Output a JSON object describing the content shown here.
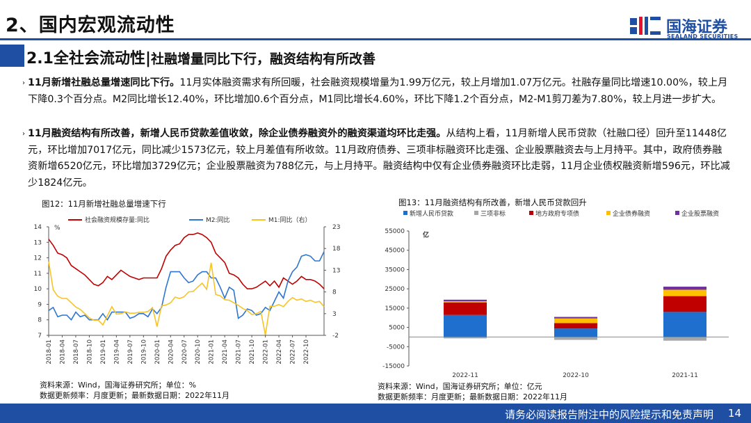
{
  "header": {
    "title": "2、国内宏观流动性",
    "logo_cn": "国海证券",
    "logo_en": "SEALAND SECURITIES"
  },
  "section": {
    "title_main": "2.1全社会流动性",
    "title_sub": "社融增量同比下行，融资结构有所改善"
  },
  "bullets": [
    {
      "bold": "11月新增社融总量增速同比下行。",
      "text": "11月实体融资需求有所回暖，社会融资规模增量为1.99万亿元，较上月增加1.07万亿元。社融存量同比增速10.00%，较上月下降0.3个百分点。M2同比增长12.40%，环比增加0.6个百分点，M1同比增长4.60%，环比下降1.2个百分点，M2-M1剪刀差为7.80%，较上月进一步扩大。"
    },
    {
      "bold": "11月融资结构有所改善，新增人民币贷款差值收敛，除企业债券融资外的融资渠道均环比走强。",
      "text": "从结构上看，11月新增人民币贷款（社融口径）回升至11448亿元，环比增加7017亿元，同比减少1573亿元，较上月差值有所收敛。11月政府债券、三项非标融资环比走强、企业股票融资去与上月持平。其中，政府债券融资新增6520亿元，环比增加3729亿元；企业股票融资为788亿元，与上月持平。融资结构中仅有企业债券融资环比走弱，11月企业债权融资新增596元，环比减少1824亿元。"
    }
  ],
  "captions": {
    "fig12": "图12：11月新增社融总量增速下行",
    "fig13": "图13：11月融资结构有所改善，新增人民币贷款回升"
  },
  "sources": {
    "fig12_line1": "资料来源：Wind，国海证券研究所；单位：%",
    "fig12_line2": "数据更新频率：月度更新；最新数据日期：2022年11月",
    "fig13_line1": "资料来源：Wind，国海证券研究所；单位：亿元",
    "fig13_line2": "数据更新频率：月度更新；最新数据日期：2022年11月"
  },
  "footer": {
    "disclaimer": "请务必阅读报告附注中的风险提示和免责声明",
    "page": "14"
  },
  "colors": {
    "brand": "#1f4fa3",
    "shehui": "#c00000",
    "m2": "#2e75d0",
    "m1": "#f7c325",
    "loan": "#1f6fce",
    "nonstd": "#a6a6a6",
    "gov": "#c00000",
    "bond": "#ffc000",
    "stock": "#7030a0"
  },
  "chart_data": [
    {
      "type": "line",
      "left_axis_unit": "%",
      "right_axis_label": "",
      "ylim_left": [
        7,
        14
      ],
      "ylim_right": [
        -2,
        23
      ],
      "yticks_left": [
        7,
        8,
        9,
        10,
        11,
        12,
        13,
        14
      ],
      "yticks_right": [
        -2,
        3,
        8,
        13,
        18,
        23
      ],
      "xtick_labels": [
        "2018-01",
        "2018-04",
        "2018-07",
        "2018-10",
        "2019-01",
        "2019-04",
        "2019-07",
        "2019-10",
        "2020-01",
        "2020-04",
        "2020-07",
        "2020-10",
        "2021-01",
        "2021-04",
        "2021-07",
        "2021-10",
        "2022-01",
        "2022-04",
        "2022-07",
        "2022-10"
      ],
      "series": [
        {
          "name": "社会融资规模存量:同比",
          "axis": "left",
          "values": [
            13.2,
            12.8,
            12.3,
            12.2,
            12.0,
            11.5,
            11.3,
            11.1,
            10.9,
            10.6,
            10.3,
            10.2,
            10.4,
            10.8,
            10.6,
            10.9,
            11.2,
            11.0,
            10.8,
            10.7,
            10.6,
            10.7,
            10.7,
            10.7,
            10.7,
            11.3,
            12.1,
            12.5,
            12.8,
            12.9,
            13.3,
            13.5,
            13.5,
            13.6,
            13.5,
            13.3,
            13.0,
            12.3,
            12.0,
            11.7,
            11.0,
            10.9,
            10.7,
            10.3,
            10.0,
            10.0,
            10.1,
            10.3,
            10.5,
            10.2,
            10.5,
            10.1,
            10.7,
            10.5,
            10.3,
            10.5,
            10.8,
            10.6,
            10.6,
            10.5,
            10.3,
            10.0
          ]
        },
        {
          "name": "M2:同比",
          "axis": "left",
          "values": [
            8.6,
            8.8,
            8.2,
            8.3,
            8.3,
            8.0,
            8.5,
            8.2,
            8.3,
            8.0,
            8.0,
            8.0,
            8.4,
            8.0,
            8.5,
            8.5,
            8.5,
            8.5,
            8.1,
            8.2,
            8.4,
            8.4,
            8.2,
            8.7,
            8.4,
            8.8,
            10.1,
            11.1,
            11.1,
            11.1,
            10.7,
            10.4,
            10.5,
            10.9,
            11.1,
            11.1,
            10.7,
            10.7,
            10.1,
            9.4,
            10.1,
            9.9,
            8.1,
            8.3,
            8.7,
            8.6,
            8.3,
            8.4,
            8.8,
            8.6,
            9.2,
            9.8,
            9.4,
            10.5,
            11.1,
            11.4,
            12.1,
            12.2,
            12.1,
            11.8,
            11.8,
            12.4
          ]
        },
        {
          "name": "M1:同比（右）",
          "axis": "right",
          "values": [
            15.0,
            8.5,
            7.0,
            6.5,
            6.5,
            5.5,
            4.5,
            4.0,
            3.0,
            2.0,
            1.5,
            1.5,
            0.4,
            2.5,
            4.6,
            2.9,
            3.0,
            3.4,
            3.1,
            3.1,
            3.3,
            3.3,
            3.5,
            4.4,
            0.0,
            4.8,
            5.0,
            5.5,
            6.8,
            6.5,
            6.9,
            8.0,
            8.1,
            9.1,
            10.0,
            8.6,
            14.7,
            7.4,
            7.1,
            6.2,
            6.1,
            5.5,
            4.9,
            4.2,
            3.7,
            2.8,
            3.0,
            3.5,
            -1.9,
            4.7,
            4.7,
            5.1,
            4.6,
            5.8,
            6.7,
            6.1,
            6.4,
            5.8,
            6.1,
            5.6,
            5.8,
            4.6
          ]
        }
      ]
    },
    {
      "type": "bar",
      "stacked": true,
      "unit_label": "亿",
      "ylim": [
        -15000,
        55000
      ],
      "yticks": [
        -15000,
        -5000,
        5000,
        15000,
        25000,
        35000,
        45000,
        55000
      ],
      "categories": [
        "2022-11",
        "2022-10",
        "2021-11"
      ],
      "series": [
        {
          "name": "新增人民币贷款",
          "values": [
            11448,
            4431,
            13021
          ]
        },
        {
          "name": "三项非标",
          "values": [
            -700,
            -1480,
            -1900
          ]
        },
        {
          "name": "地方政府专项债",
          "values": [
            6520,
            2791,
            8200
          ]
        },
        {
          "name": "企业债券融资",
          "values": [
            596,
            2420,
            3300
          ]
        },
        {
          "name": "企业股票融资",
          "values": [
            788,
            788,
            1600
          ]
        }
      ]
    }
  ]
}
